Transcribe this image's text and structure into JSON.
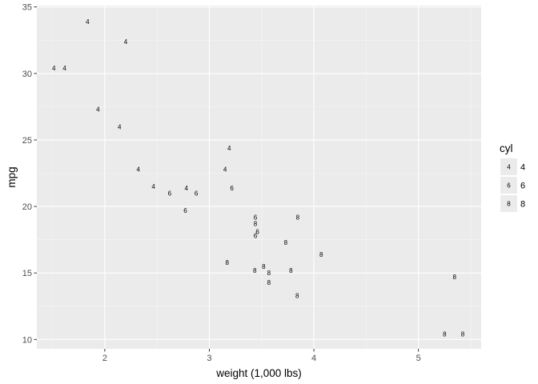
{
  "chart_data": {
    "type": "scatter",
    "xlabel": "weight (1,000 lbs)",
    "ylabel": "mpg",
    "xlim": [
      1.35,
      5.6
    ],
    "ylim": [
      9.3,
      35.1
    ],
    "x_ticks": [
      2,
      3,
      4,
      5
    ],
    "y_ticks": [
      10,
      15,
      20,
      25,
      30,
      35
    ],
    "x_tick_labels": [
      "2",
      "3",
      "4",
      "5"
    ],
    "y_tick_labels": [
      "10",
      "15",
      "20",
      "25",
      "30",
      "35"
    ],
    "grid": true,
    "legend": {
      "title": "cyl",
      "placement": "right",
      "entries": [
        {
          "key": "4",
          "label": "4"
        },
        {
          "key": "6",
          "label": "6"
        },
        {
          "key": "8",
          "label": "8"
        }
      ]
    },
    "points": [
      {
        "x": 2.62,
        "y": 21.0,
        "label": "6"
      },
      {
        "x": 2.875,
        "y": 21.0,
        "label": "6"
      },
      {
        "x": 2.32,
        "y": 22.8,
        "label": "4"
      },
      {
        "x": 3.215,
        "y": 21.4,
        "label": "6"
      },
      {
        "x": 3.44,
        "y": 18.7,
        "label": "8"
      },
      {
        "x": 3.46,
        "y": 18.1,
        "label": "6"
      },
      {
        "x": 3.57,
        "y": 14.3,
        "label": "8"
      },
      {
        "x": 3.19,
        "y": 24.4,
        "label": "4"
      },
      {
        "x": 3.15,
        "y": 22.8,
        "label": "4"
      },
      {
        "x": 3.44,
        "y": 19.2,
        "label": "6"
      },
      {
        "x": 3.44,
        "y": 17.8,
        "label": "6"
      },
      {
        "x": 4.07,
        "y": 16.4,
        "label": "8"
      },
      {
        "x": 3.73,
        "y": 17.3,
        "label": "8"
      },
      {
        "x": 3.78,
        "y": 15.2,
        "label": "8"
      },
      {
        "x": 5.25,
        "y": 10.4,
        "label": "8"
      },
      {
        "x": 5.424,
        "y": 10.4,
        "label": "8"
      },
      {
        "x": 5.345,
        "y": 14.7,
        "label": "8"
      },
      {
        "x": 2.2,
        "y": 32.4,
        "label": "4"
      },
      {
        "x": 1.615,
        "y": 30.4,
        "label": "4"
      },
      {
        "x": 1.835,
        "y": 33.9,
        "label": "4"
      },
      {
        "x": 2.465,
        "y": 21.5,
        "label": "4"
      },
      {
        "x": 3.52,
        "y": 15.5,
        "label": "8"
      },
      {
        "x": 3.435,
        "y": 15.2,
        "label": "8"
      },
      {
        "x": 3.84,
        "y": 13.3,
        "label": "8"
      },
      {
        "x": 3.845,
        "y": 19.2,
        "label": "8"
      },
      {
        "x": 1.935,
        "y": 27.3,
        "label": "4"
      },
      {
        "x": 2.14,
        "y": 26.0,
        "label": "4"
      },
      {
        "x": 1.513,
        "y": 30.4,
        "label": "4"
      },
      {
        "x": 3.17,
        "y": 15.8,
        "label": "8"
      },
      {
        "x": 2.77,
        "y": 19.7,
        "label": "6"
      },
      {
        "x": 3.57,
        "y": 15.0,
        "label": "8"
      },
      {
        "x": 2.78,
        "y": 21.4,
        "label": "4"
      }
    ]
  },
  "colors": {
    "panel_background": "#ebebeb",
    "grid_major": "#ffffff",
    "grid_minor": "#f5f5f5",
    "tick_label": "#4d4d4d",
    "legend_key_background": "#ebebeb"
  }
}
